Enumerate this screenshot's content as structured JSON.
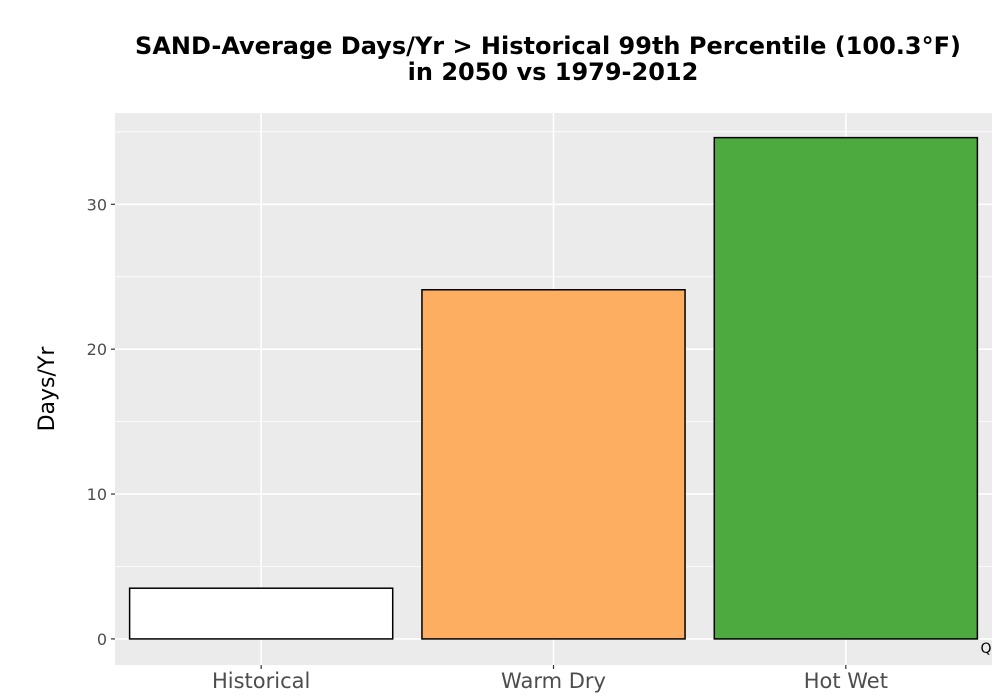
{
  "chart_data": {
    "type": "bar",
    "title_line1": "SAND-Average Days/Yr > Historical 99th Percentile (100.3°F)",
    "title_line2": "in 2050 vs 1979-2012",
    "xlabel": "",
    "ylabel": "Days/Yr",
    "categories": [
      "Historical",
      "Warm Dry",
      "Hot Wet"
    ],
    "values": [
      3.5,
      24.1,
      34.6
    ],
    "colors": [
      "#ffffff",
      "#fdae61",
      "#4daa3f"
    ],
    "bar_outline_color": "#000000",
    "ylim": [
      -1.8,
      36.3
    ],
    "yticks": [
      0,
      10,
      20,
      30
    ],
    "ytick_labels": [
      "0",
      "10",
      "20",
      "30"
    ],
    "grid": true,
    "panel_background": "#ebebeb",
    "grid_color": "#ffffff",
    "legend": "none",
    "corner_note": "Q"
  }
}
